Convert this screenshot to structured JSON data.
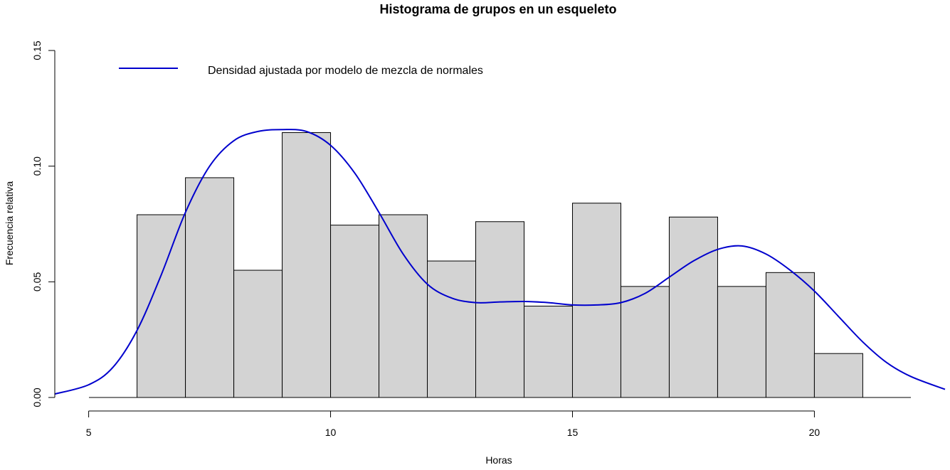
{
  "chart_data": {
    "type": "bar",
    "title": "Histograma de grupos en un esqueleto",
    "xlabel": "Horas",
    "ylabel": "Frecuencia relativa",
    "xlim": [
      4.3,
      22.7
    ],
    "ylim": [
      0,
      0.15
    ],
    "xticks": [
      {
        "value": 5,
        "label": "5"
      },
      {
        "value": 10,
        "label": "10"
      },
      {
        "value": 15,
        "label": "15"
      },
      {
        "value": 20,
        "label": "20"
      }
    ],
    "yticks": [
      {
        "value": 0,
        "label": "0.00"
      },
      {
        "value": 0.05,
        "label": "0.05"
      },
      {
        "value": 0.1,
        "label": "0.10"
      },
      {
        "value": 0.15,
        "label": "0.15"
      }
    ],
    "bins": [
      {
        "start": 6,
        "end": 7,
        "value": 0.079
      },
      {
        "start": 7,
        "end": 8,
        "value": 0.095
      },
      {
        "start": 8,
        "end": 9,
        "value": 0.055
      },
      {
        "start": 9,
        "end": 10,
        "value": 0.1145
      },
      {
        "start": 10,
        "end": 11,
        "value": 0.0745
      },
      {
        "start": 11,
        "end": 12,
        "value": 0.079
      },
      {
        "start": 12,
        "end": 13,
        "value": 0.059
      },
      {
        "start": 13,
        "end": 14,
        "value": 0.076
      },
      {
        "start": 14,
        "end": 15,
        "value": 0.0395
      },
      {
        "start": 15,
        "end": 16,
        "value": 0.084
      },
      {
        "start": 16,
        "end": 17,
        "value": 0.048
      },
      {
        "start": 17,
        "end": 18,
        "value": 0.078
      },
      {
        "start": 18,
        "end": 19,
        "value": 0.048
      },
      {
        "start": 19,
        "end": 20,
        "value": 0.054
      },
      {
        "start": 20,
        "end": 21,
        "value": 0.019
      }
    ],
    "series": [
      {
        "name": "Densidad ajustada por modelo de mezcla de normales",
        "color": "#0000cd",
        "type": "line",
        "x": [
          4.3,
          5.0,
          5.5,
          6.0,
          6.5,
          7.0,
          7.5,
          8.0,
          8.5,
          9.0,
          9.5,
          10.0,
          10.5,
          11.0,
          11.5,
          12.0,
          12.5,
          13.0,
          13.5,
          14.0,
          14.5,
          15.0,
          15.5,
          16.0,
          16.5,
          17.0,
          17.5,
          18.0,
          18.5,
          19.0,
          19.5,
          20.0,
          20.5,
          21.0,
          21.5,
          22.0,
          22.7
        ],
        "y": [
          0.0015,
          0.0055,
          0.013,
          0.029,
          0.053,
          0.08,
          0.1,
          0.111,
          0.115,
          0.1158,
          0.115,
          0.109,
          0.097,
          0.08,
          0.062,
          0.049,
          0.043,
          0.041,
          0.0413,
          0.0415,
          0.041,
          0.04,
          0.04,
          0.041,
          0.045,
          0.052,
          0.059,
          0.064,
          0.0655,
          0.062,
          0.055,
          0.046,
          0.035,
          0.024,
          0.015,
          0.009,
          0.0035
        ]
      }
    ],
    "legend": {
      "position": "top-left",
      "entries": [
        {
          "label": "Densidad ajustada por modelo de mezcla de normales",
          "color": "#0000cd"
        }
      ]
    },
    "grid": false
  }
}
